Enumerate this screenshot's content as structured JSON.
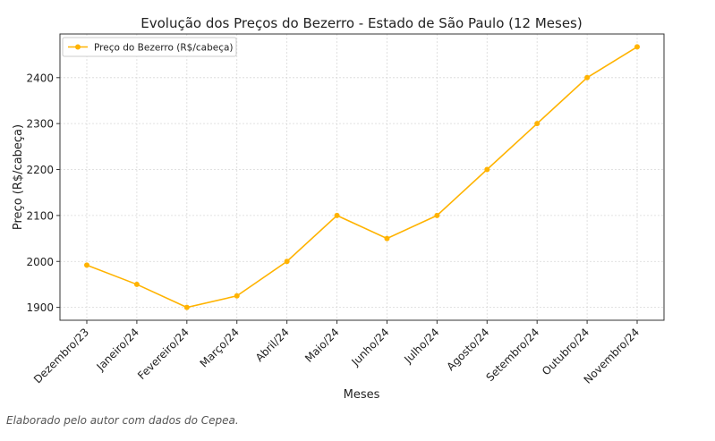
{
  "chart_data": {
    "type": "line",
    "title": "Evolução dos Preços do Bezerro - Estado de São Paulo (12 Meses)",
    "xlabel": "Meses",
    "ylabel": "Preço (R$/cabeça)",
    "categories": [
      "Dezembro/23",
      "Janeiro/24",
      "Fevereiro/24",
      "Março/24",
      "Abril/24",
      "Maio/24",
      "Junho/24",
      "Julho/24",
      "Agosto/24",
      "Setembro/24",
      "Outubro/24",
      "Novembro/24"
    ],
    "series": [
      {
        "name": "Preço do Bezerro (R$/cabeça)",
        "color": "#FFB300",
        "values": [
          1992,
          1950,
          1900,
          1925,
          2000,
          2100,
          2050,
          2100,
          2200,
          2300,
          2400,
          2467
        ]
      }
    ],
    "ylim": [
      1872,
      2495
    ],
    "yticks": [
      1900,
      2000,
      2100,
      2200,
      2300,
      2400
    ],
    "grid": true,
    "legend_position": "top-left"
  },
  "caption": "Elaborado pelo autor com dados do Cepea."
}
